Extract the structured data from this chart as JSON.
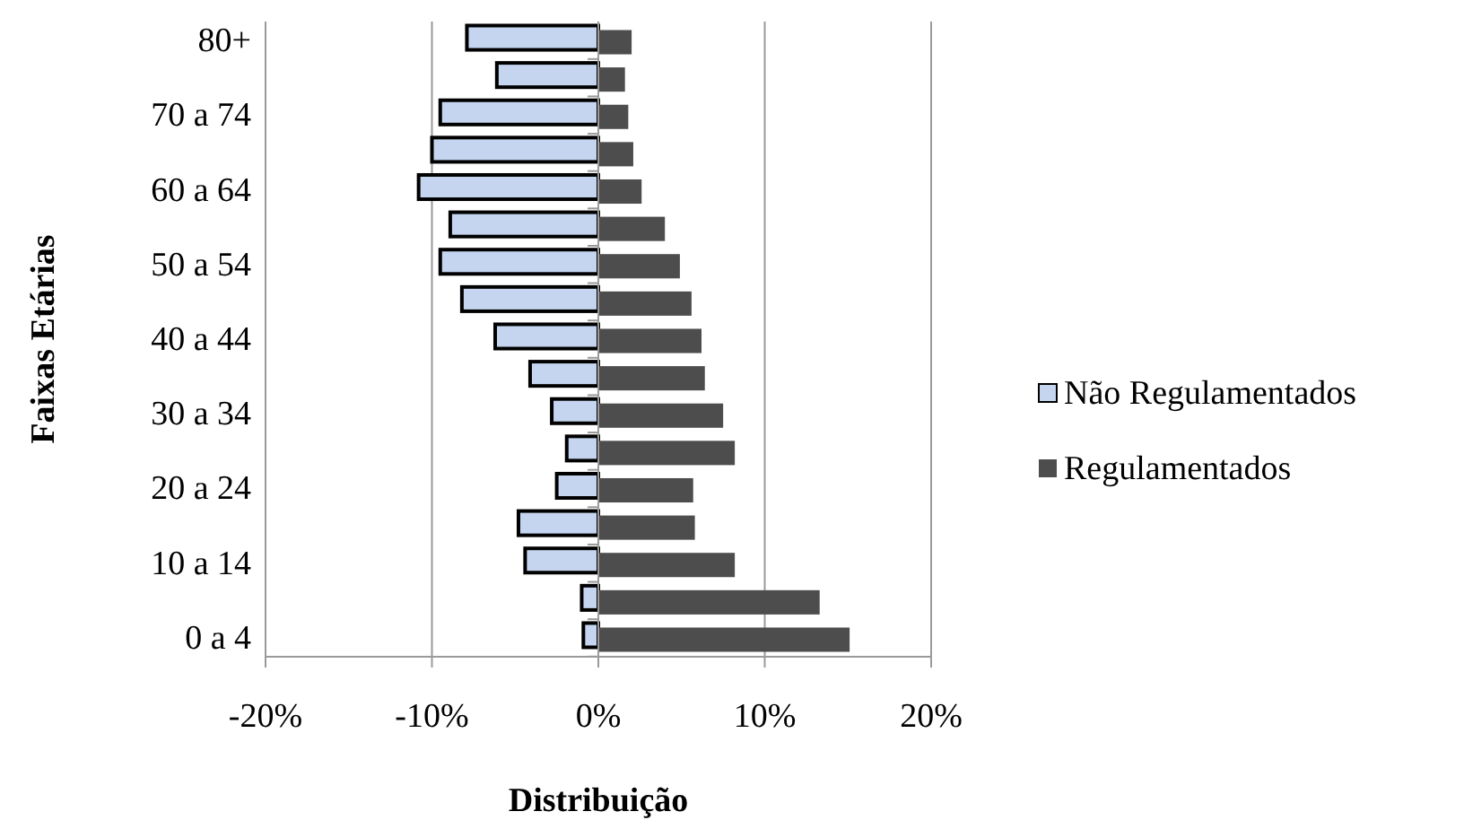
{
  "chart_data": {
    "type": "bar",
    "orientation": "horizontal",
    "xlabel": "Distribuição",
    "ylabel": "Faixas Etárias",
    "categories": [
      "80+",
      null,
      "70 a 74",
      null,
      "60 a 64",
      null,
      "50 a 54",
      null,
      "40 a 44",
      null,
      "30 a 34",
      null,
      "20 a 24",
      null,
      "10 a 14",
      null,
      "0 a 4"
    ],
    "series": [
      {
        "name": "Não Regulamentados",
        "color": "#c5d5f0",
        "values": [
          -7.9,
          -6.1,
          -9.5,
          -10.0,
          -10.8,
          -8.9,
          -9.5,
          -8.2,
          -6.2,
          -4.1,
          -2.8,
          -1.9,
          -2.5,
          -4.8,
          -4.4,
          -1.0,
          -0.9
        ]
      },
      {
        "name": "Regulamentados",
        "color": "#4d4d4d",
        "values": [
          2.0,
          1.6,
          1.8,
          2.1,
          2.6,
          4.0,
          4.9,
          5.6,
          6.2,
          6.4,
          7.5,
          8.2,
          5.7,
          5.8,
          8.2,
          13.3,
          15.1
        ]
      }
    ],
    "xlim": [
      -20,
      20
    ],
    "xticks": [
      {
        "value": -20,
        "label": "-20%"
      },
      {
        "value": -10,
        "label": "-10%"
      },
      {
        "value": 0,
        "label": "0%"
      },
      {
        "value": 10,
        "label": "10%"
      },
      {
        "value": 20,
        "label": "20%"
      }
    ],
    "grid": "x",
    "legend": "right"
  }
}
